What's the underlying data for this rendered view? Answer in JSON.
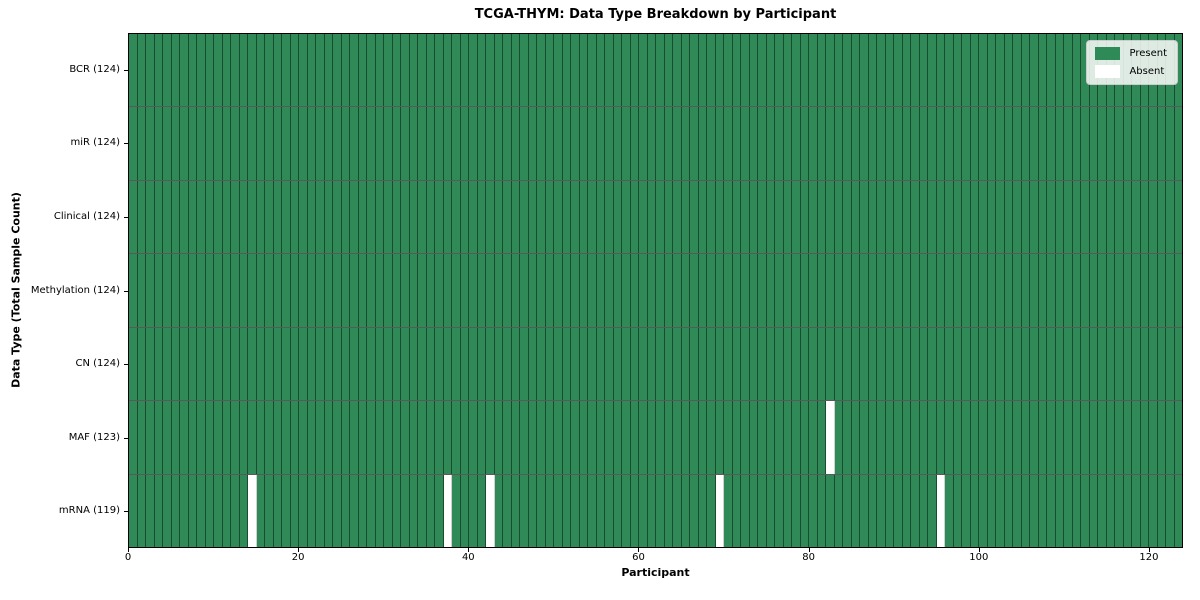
{
  "chart_data": {
    "type": "heatmap",
    "title": "TCGA-THYM: Data Type Breakdown by Participant",
    "xlabel": "Participant",
    "ylabel": "Data Type (Total Sample Count)",
    "xlim": [
      0,
      124
    ],
    "n_participants": 124,
    "x_ticks": [
      0,
      20,
      40,
      60,
      80,
      100,
      120
    ],
    "grid": false,
    "rows": [
      {
        "key": "bcr",
        "label": "BCR (124)",
        "present_count": 124,
        "absent_participants": []
      },
      {
        "key": "mir",
        "label": "miR (124)",
        "present_count": 124,
        "absent_participants": []
      },
      {
        "key": "clinical",
        "label": "Clinical (124)",
        "present_count": 124,
        "absent_participants": []
      },
      {
        "key": "methylation",
        "label": "Methylation (124)",
        "present_count": 124,
        "absent_participants": []
      },
      {
        "key": "cn",
        "label": "CN (124)",
        "present_count": 124,
        "absent_participants": []
      },
      {
        "key": "maf",
        "label": "MAF (123)",
        "present_count": 123,
        "absent_participants": [
          82
        ]
      },
      {
        "key": "mrna",
        "label": "mRNA (119)",
        "present_count": 119,
        "absent_participants": [
          14,
          37,
          42,
          69,
          95
        ]
      }
    ],
    "legend": {
      "position": "upper right",
      "entries": [
        {
          "label": "Present",
          "color": "#2e8b57"
        },
        {
          "label": "Absent",
          "color": "#ffffff"
        }
      ]
    },
    "colors": {
      "present": "#2f8a57",
      "absent": "#ffffff",
      "cell_edge": "rgba(0,0,0,0.45)",
      "row_divider": "rgba(0,0,0,0.65)",
      "axis": "#000000"
    }
  }
}
